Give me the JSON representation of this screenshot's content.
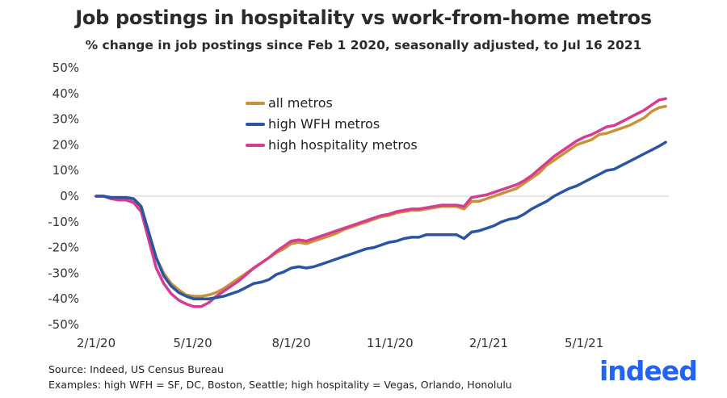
{
  "header": {
    "title": "Job postings in hospitality vs work-from-home metros",
    "subtitle": "% change in job postings since Feb 1 2020, seasonally adjusted, to Jul 16 2021"
  },
  "footer": {
    "source": "Source: Indeed, US Census Bureau",
    "examples": "Examples: high WFH = SF, DC, Boston, Seattle; high hospitality = Vegas, Orlando, Honolulu"
  },
  "brand": {
    "logo_text": "indeed",
    "color": "#2164f3"
  },
  "chart_data": {
    "type": "line",
    "title": "Job postings in hospitality vs work-from-home metros",
    "subtitle": "% change in job postings since Feb 1 2020, seasonally adjusted, to Jul 16 2021",
    "xlabel": "",
    "ylabel": "",
    "x_ticks": [
      "2/1/20",
      "5/1/20",
      "8/1/20",
      "11/1/20",
      "2/1/21",
      "5/1/21"
    ],
    "y_ticks": [
      "50%",
      "40%",
      "30%",
      "20%",
      "10%",
      "0%",
      "-10%",
      "-20%",
      "-30%",
      "-40%",
      "-50%"
    ],
    "ylim": [
      -50,
      50
    ],
    "xlim": [
      "2020-02-01",
      "2021-07-16"
    ],
    "grid": false,
    "zero_line": true,
    "legend": {
      "position": "top-left"
    },
    "series": [
      {
        "name": "all metros",
        "color": "#c8913a",
        "points": [
          [
            "2020-02-01",
            0
          ],
          [
            "2020-02-08",
            0
          ],
          [
            "2020-02-15",
            -1
          ],
          [
            "2020-02-22",
            -1
          ],
          [
            "2020-02-29",
            -1
          ],
          [
            "2020-03-07",
            -2
          ],
          [
            "2020-03-14",
            -5
          ],
          [
            "2020-03-21",
            -15
          ],
          [
            "2020-03-28",
            -24
          ],
          [
            "2020-04-04",
            -30
          ],
          [
            "2020-04-11",
            -34
          ],
          [
            "2020-04-18",
            -36.5
          ],
          [
            "2020-04-25",
            -38.5
          ],
          [
            "2020-05-02",
            -39
          ],
          [
            "2020-05-09",
            -39
          ],
          [
            "2020-05-16",
            -38.5
          ],
          [
            "2020-05-23",
            -37.5
          ],
          [
            "2020-05-30",
            -36
          ],
          [
            "2020-06-06",
            -34
          ],
          [
            "2020-06-13",
            -32
          ],
          [
            "2020-06-20",
            -30
          ],
          [
            "2020-06-27",
            -28
          ],
          [
            "2020-07-04",
            -26
          ],
          [
            "2020-07-11",
            -24
          ],
          [
            "2020-07-18",
            -22
          ],
          [
            "2020-07-25",
            -20.5
          ],
          [
            "2020-08-01",
            -18.5
          ],
          [
            "2020-08-08",
            -18
          ],
          [
            "2020-08-15",
            -18.5
          ],
          [
            "2020-08-22",
            -17.5
          ],
          [
            "2020-08-29",
            -16.5
          ],
          [
            "2020-09-05",
            -15.5
          ],
          [
            "2020-09-12",
            -14.5
          ],
          [
            "2020-09-19",
            -13
          ],
          [
            "2020-09-26",
            -12
          ],
          [
            "2020-10-03",
            -11
          ],
          [
            "2020-10-10",
            -10
          ],
          [
            "2020-10-17",
            -9
          ],
          [
            "2020-10-24",
            -8
          ],
          [
            "2020-10-31",
            -7.5
          ],
          [
            "2020-11-07",
            -6.5
          ],
          [
            "2020-11-14",
            -6
          ],
          [
            "2020-11-21",
            -5.5
          ],
          [
            "2020-11-28",
            -5.5
          ],
          [
            "2020-12-05",
            -5
          ],
          [
            "2020-12-12",
            -4.5
          ],
          [
            "2020-12-19",
            -4
          ],
          [
            "2020-12-26",
            -4
          ],
          [
            "2021-01-02",
            -4
          ],
          [
            "2021-01-09",
            -5
          ],
          [
            "2021-01-16",
            -2
          ],
          [
            "2021-01-23",
            -2
          ],
          [
            "2021-01-30",
            -1
          ],
          [
            "2021-02-06",
            0
          ],
          [
            "2021-02-13",
            1
          ],
          [
            "2021-02-20",
            2
          ],
          [
            "2021-02-27",
            3
          ],
          [
            "2021-03-06",
            5
          ],
          [
            "2021-03-13",
            7
          ],
          [
            "2021-03-20",
            9
          ],
          [
            "2021-03-27",
            12
          ],
          [
            "2021-04-03",
            14
          ],
          [
            "2021-04-10",
            16
          ],
          [
            "2021-04-17",
            18
          ],
          [
            "2021-04-24",
            20
          ],
          [
            "2021-05-01",
            21
          ],
          [
            "2021-05-08",
            22
          ],
          [
            "2021-05-15",
            24
          ],
          [
            "2021-05-22",
            24.5
          ],
          [
            "2021-05-29",
            25.5
          ],
          [
            "2021-06-05",
            26.5
          ],
          [
            "2021-06-12",
            27.5
          ],
          [
            "2021-06-19",
            29
          ],
          [
            "2021-06-26",
            30.5
          ],
          [
            "2021-07-03",
            33
          ],
          [
            "2021-07-10",
            34.5
          ],
          [
            "2021-07-16",
            35
          ]
        ]
      },
      {
        "name": "high WFH metros",
        "color": "#2a55a3",
        "points": [
          [
            "2020-02-01",
            0
          ],
          [
            "2020-02-08",
            0
          ],
          [
            "2020-02-15",
            -0.5
          ],
          [
            "2020-02-22",
            -0.5
          ],
          [
            "2020-02-29",
            -0.5
          ],
          [
            "2020-03-07",
            -1
          ],
          [
            "2020-03-14",
            -4
          ],
          [
            "2020-03-21",
            -14
          ],
          [
            "2020-03-28",
            -24
          ],
          [
            "2020-04-04",
            -31
          ],
          [
            "2020-04-11",
            -35
          ],
          [
            "2020-04-18",
            -37.5
          ],
          [
            "2020-04-25",
            -39
          ],
          [
            "2020-05-02",
            -40
          ],
          [
            "2020-05-09",
            -40
          ],
          [
            "2020-05-16",
            -40
          ],
          [
            "2020-05-23",
            -39.5
          ],
          [
            "2020-05-30",
            -39
          ],
          [
            "2020-06-06",
            -38
          ],
          [
            "2020-06-13",
            -37
          ],
          [
            "2020-06-20",
            -35.5
          ],
          [
            "2020-06-27",
            -34
          ],
          [
            "2020-07-04",
            -33.5
          ],
          [
            "2020-07-11",
            -32.5
          ],
          [
            "2020-07-18",
            -30.5
          ],
          [
            "2020-07-25",
            -29.5
          ],
          [
            "2020-08-01",
            -28
          ],
          [
            "2020-08-08",
            -27.5
          ],
          [
            "2020-08-15",
            -28
          ],
          [
            "2020-08-22",
            -27.5
          ],
          [
            "2020-08-29",
            -26.5
          ],
          [
            "2020-09-05",
            -25.5
          ],
          [
            "2020-09-12",
            -24.5
          ],
          [
            "2020-09-19",
            -23.5
          ],
          [
            "2020-09-26",
            -22.5
          ],
          [
            "2020-10-03",
            -21.5
          ],
          [
            "2020-10-10",
            -20.5
          ],
          [
            "2020-10-17",
            -20
          ],
          [
            "2020-10-24",
            -19
          ],
          [
            "2020-10-31",
            -18
          ],
          [
            "2020-11-07",
            -17.5
          ],
          [
            "2020-11-14",
            -16.5
          ],
          [
            "2020-11-21",
            -16
          ],
          [
            "2020-11-28",
            -16
          ],
          [
            "2020-12-05",
            -15
          ],
          [
            "2020-12-12",
            -15
          ],
          [
            "2020-12-19",
            -15
          ],
          [
            "2020-12-26",
            -15
          ],
          [
            "2021-01-02",
            -15
          ],
          [
            "2021-01-09",
            -16.5
          ],
          [
            "2021-01-16",
            -14
          ],
          [
            "2021-01-23",
            -13.5
          ],
          [
            "2021-01-30",
            -12.5
          ],
          [
            "2021-02-06",
            -11.5
          ],
          [
            "2021-02-13",
            -10
          ],
          [
            "2021-02-20",
            -9
          ],
          [
            "2021-02-27",
            -8.5
          ],
          [
            "2021-03-06",
            -7
          ],
          [
            "2021-03-13",
            -5
          ],
          [
            "2021-03-20",
            -3.5
          ],
          [
            "2021-03-27",
            -2
          ],
          [
            "2021-04-03",
            0
          ],
          [
            "2021-04-10",
            1.5
          ],
          [
            "2021-04-17",
            3
          ],
          [
            "2021-04-24",
            4
          ],
          [
            "2021-05-01",
            5.5
          ],
          [
            "2021-05-08",
            7
          ],
          [
            "2021-05-15",
            8.5
          ],
          [
            "2021-05-22",
            10
          ],
          [
            "2021-05-29",
            10.5
          ],
          [
            "2021-06-05",
            12
          ],
          [
            "2021-06-12",
            13.5
          ],
          [
            "2021-06-19",
            15
          ],
          [
            "2021-06-26",
            16.5
          ],
          [
            "2021-07-03",
            18
          ],
          [
            "2021-07-10",
            19.5
          ],
          [
            "2021-07-16",
            21
          ]
        ]
      },
      {
        "name": "high hospitality metros",
        "color": "#d63c8f",
        "points": [
          [
            "2020-02-01",
            0
          ],
          [
            "2020-02-08",
            0
          ],
          [
            "2020-02-15",
            -1
          ],
          [
            "2020-02-22",
            -1.5
          ],
          [
            "2020-02-29",
            -1.5
          ],
          [
            "2020-03-07",
            -2.5
          ],
          [
            "2020-03-14",
            -6
          ],
          [
            "2020-03-21",
            -17
          ],
          [
            "2020-03-28",
            -28
          ],
          [
            "2020-04-04",
            -34
          ],
          [
            "2020-04-11",
            -38
          ],
          [
            "2020-04-18",
            -40.5
          ],
          [
            "2020-04-25",
            -42
          ],
          [
            "2020-05-02",
            -43
          ],
          [
            "2020-05-09",
            -43
          ],
          [
            "2020-05-16",
            -41.5
          ],
          [
            "2020-05-23",
            -39
          ],
          [
            "2020-05-30",
            -37
          ],
          [
            "2020-06-06",
            -35
          ],
          [
            "2020-06-13",
            -33
          ],
          [
            "2020-06-20",
            -30.5
          ],
          [
            "2020-06-27",
            -28
          ],
          [
            "2020-07-04",
            -26
          ],
          [
            "2020-07-11",
            -24
          ],
          [
            "2020-07-18",
            -21.5
          ],
          [
            "2020-07-25",
            -19.5
          ],
          [
            "2020-08-01",
            -17.5
          ],
          [
            "2020-08-08",
            -17
          ],
          [
            "2020-08-15",
            -17.5
          ],
          [
            "2020-08-22",
            -16.5
          ],
          [
            "2020-08-29",
            -15.5
          ],
          [
            "2020-09-05",
            -14.5
          ],
          [
            "2020-09-12",
            -13.5
          ],
          [
            "2020-09-19",
            -12.5
          ],
          [
            "2020-09-26",
            -11.5
          ],
          [
            "2020-10-03",
            -10.5
          ],
          [
            "2020-10-10",
            -9.5
          ],
          [
            "2020-10-17",
            -8.5
          ],
          [
            "2020-10-24",
            -7.5
          ],
          [
            "2020-10-31",
            -7
          ],
          [
            "2020-11-07",
            -6
          ],
          [
            "2020-11-14",
            -5.5
          ],
          [
            "2020-11-21",
            -5
          ],
          [
            "2020-11-28",
            -5
          ],
          [
            "2020-12-05",
            -4.5
          ],
          [
            "2020-12-12",
            -4
          ],
          [
            "2020-12-19",
            -3.5
          ],
          [
            "2020-12-26",
            -3.5
          ],
          [
            "2021-01-02",
            -3.5
          ],
          [
            "2021-01-09",
            -4
          ],
          [
            "2021-01-16",
            -0.5
          ],
          [
            "2021-01-23",
            0
          ],
          [
            "2021-01-30",
            0.5
          ],
          [
            "2021-02-06",
            1.5
          ],
          [
            "2021-02-13",
            2.5
          ],
          [
            "2021-02-20",
            3.5
          ],
          [
            "2021-02-27",
            4.5
          ],
          [
            "2021-03-06",
            6
          ],
          [
            "2021-03-13",
            8
          ],
          [
            "2021-03-20",
            10.5
          ],
          [
            "2021-03-27",
            13
          ],
          [
            "2021-04-03",
            15.5
          ],
          [
            "2021-04-10",
            17.5
          ],
          [
            "2021-04-17",
            19.5
          ],
          [
            "2021-04-24",
            21.5
          ],
          [
            "2021-05-01",
            23
          ],
          [
            "2021-05-08",
            24
          ],
          [
            "2021-05-15",
            25.5
          ],
          [
            "2021-05-22",
            27
          ],
          [
            "2021-05-29",
            27.5
          ],
          [
            "2021-06-05",
            29
          ],
          [
            "2021-06-12",
            30.5
          ],
          [
            "2021-06-19",
            32
          ],
          [
            "2021-06-26",
            33.5
          ],
          [
            "2021-07-03",
            35.5
          ],
          [
            "2021-07-10",
            37.5
          ],
          [
            "2021-07-16",
            38
          ]
        ]
      }
    ]
  }
}
